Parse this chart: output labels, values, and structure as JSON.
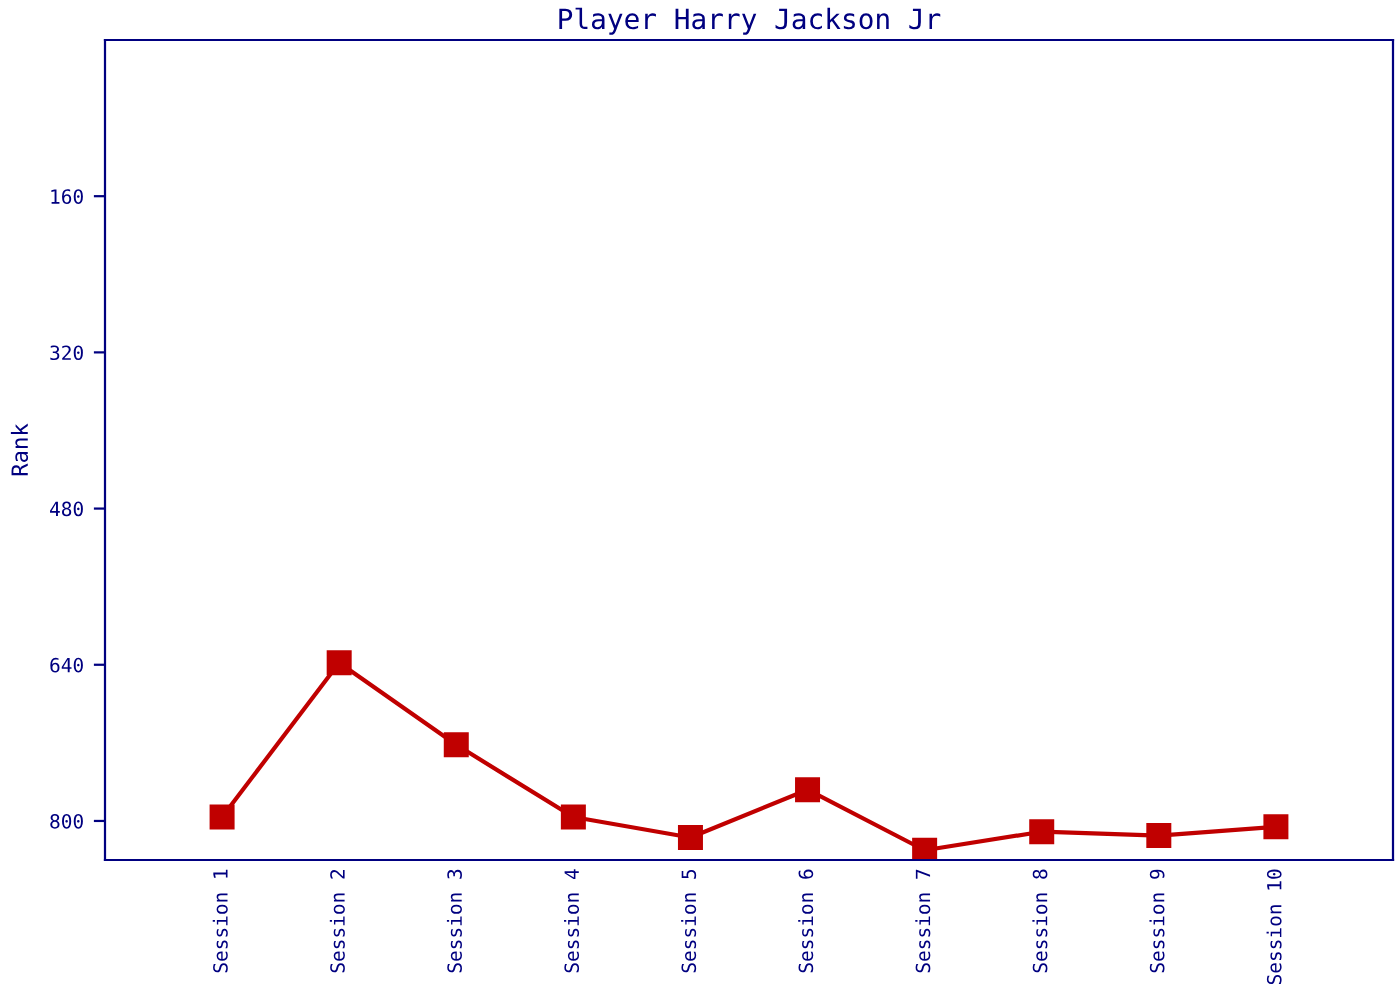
{
  "chart_data": {
    "type": "line",
    "title": "Player Harry Jackson Jr",
    "ylabel": "Rank",
    "categories": [
      "Session 1",
      "Session 2",
      "Session 3",
      "Session 4",
      "Session 5",
      "Session 6",
      "Session 7",
      "Session 8",
      "Session 9",
      "Session 10"
    ],
    "series": [
      {
        "color": "#c00000",
        "values": [
          796,
          638,
          722,
          796,
          817,
          768,
          830,
          811,
          815,
          806
        ]
      }
    ],
    "ylim": [
      840,
      0
    ],
    "yticks": [
      160,
      320,
      480,
      640,
      800
    ],
    "marker": "square",
    "line_style": "solid",
    "grid": false,
    "legend": false
  }
}
